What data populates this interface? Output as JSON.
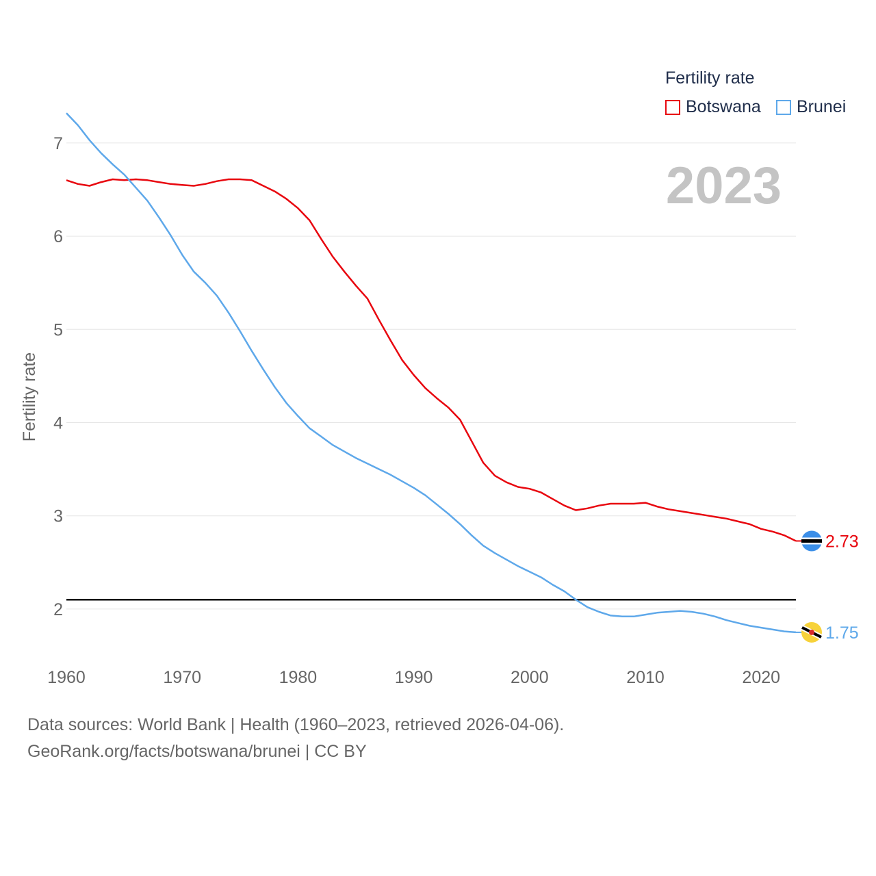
{
  "chart_data": {
    "type": "line",
    "title": "",
    "ylabel": "Fertility rate",
    "xlabel": "",
    "xlim": [
      1960,
      2023
    ],
    "ylim": [
      1.5,
      7.3
    ],
    "yticks": [
      2,
      3,
      4,
      5,
      6,
      7
    ],
    "xticks": [
      1960,
      1970,
      1980,
      1990,
      2000,
      2010,
      2020
    ],
    "grid": true,
    "year_display": "2023",
    "legend_title": "Fertility rate",
    "legend_position": "top-right",
    "reference_line": 2.1,
    "x": [
      1960,
      1961,
      1962,
      1963,
      1964,
      1965,
      1966,
      1967,
      1968,
      1969,
      1970,
      1971,
      1972,
      1973,
      1974,
      1975,
      1976,
      1977,
      1978,
      1979,
      1980,
      1981,
      1982,
      1983,
      1984,
      1985,
      1986,
      1987,
      1988,
      1989,
      1990,
      1991,
      1992,
      1993,
      1994,
      1995,
      1996,
      1997,
      1998,
      1999,
      2000,
      2001,
      2002,
      2003,
      2004,
      2005,
      2006,
      2007,
      2008,
      2009,
      2010,
      2011,
      2012,
      2013,
      2014,
      2015,
      2016,
      2017,
      2018,
      2019,
      2020,
      2021,
      2022,
      2023
    ],
    "series": [
      {
        "name": "Botswana",
        "color": "#e8070f",
        "end_label": "2.73",
        "values": [
          6.6,
          6.56,
          6.54,
          6.58,
          6.61,
          6.6,
          6.61,
          6.6,
          6.58,
          6.56,
          6.55,
          6.54,
          6.56,
          6.59,
          6.61,
          6.61,
          6.6,
          6.54,
          6.48,
          6.4,
          6.3,
          6.17,
          5.97,
          5.78,
          5.62,
          5.47,
          5.33,
          5.1,
          4.88,
          4.67,
          4.51,
          4.37,
          4.26,
          4.16,
          4.03,
          3.8,
          3.57,
          3.43,
          3.36,
          3.31,
          3.29,
          3.25,
          3.18,
          3.11,
          3.06,
          3.08,
          3.11,
          3.13,
          3.13,
          3.13,
          3.14,
          3.1,
          3.07,
          3.05,
          3.03,
          3.01,
          2.99,
          2.97,
          2.94,
          2.91,
          2.86,
          2.83,
          2.79,
          2.73
        ]
      },
      {
        "name": "Brunei",
        "color": "#5ea8ea",
        "end_label": "1.75",
        "values": [
          7.32,
          7.19,
          7.03,
          6.89,
          6.77,
          6.66,
          6.52,
          6.38,
          6.2,
          6.01,
          5.8,
          5.62,
          5.5,
          5.36,
          5.18,
          4.98,
          4.77,
          4.57,
          4.38,
          4.21,
          4.07,
          3.94,
          3.85,
          3.76,
          3.69,
          3.62,
          3.56,
          3.5,
          3.44,
          3.37,
          3.3,
          3.22,
          3.12,
          3.02,
          2.91,
          2.79,
          2.68,
          2.6,
          2.53,
          2.46,
          2.4,
          2.34,
          2.26,
          2.19,
          2.1,
          2.02,
          1.97,
          1.93,
          1.92,
          1.92,
          1.94,
          1.96,
          1.97,
          1.98,
          1.97,
          1.95,
          1.92,
          1.88,
          1.85,
          1.82,
          1.8,
          1.78,
          1.76,
          1.75
        ]
      }
    ]
  },
  "footer": {
    "line1": "Data sources: World Bank | Health (1960–2023, retrieved 2026-04-06).",
    "line2": "GeoRank.org/facts/botswana/brunei | CC BY"
  }
}
